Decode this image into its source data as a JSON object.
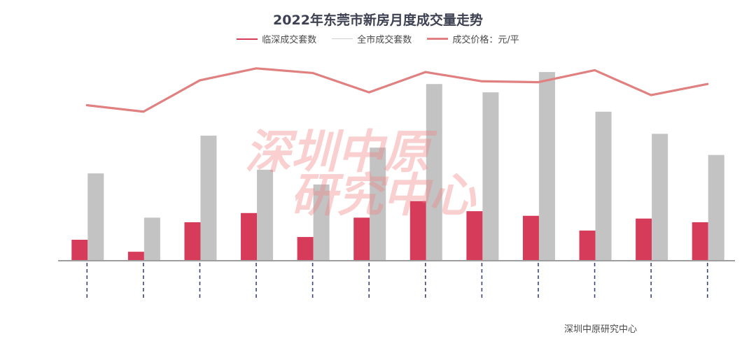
{
  "chart_data": {
    "type": "bar",
    "title": "2022年东莞市新房月度成交量走势",
    "watermark": "深圳中原研究中心",
    "source": "深圳中原研究中心",
    "categories": [
      "",
      "",
      "",
      "",
      "",
      "",
      "",
      "",
      "",
      "",
      "",
      ""
    ],
    "series": [
      {
        "name": "临深成交套数",
        "type": "bar",
        "color": "#d63c5a",
        "values": [
          110,
          45,
          205,
          255,
          125,
          230,
          320,
          265,
          240,
          160,
          225,
          205
        ]
      },
      {
        "name": "全市成交套数",
        "type": "bar",
        "color": "#c3c3c3",
        "values": [
          470,
          230,
          675,
          490,
          410,
          610,
          955,
          910,
          1020,
          805,
          685,
          570
        ]
      },
      {
        "name": "成交价格：元/平",
        "type": "line",
        "color": "#e08080",
        "values": [
          840,
          805,
          975,
          1040,
          1015,
          910,
          1020,
          970,
          965,
          1030,
          895,
          955
        ]
      }
    ],
    "ylim": [
      0,
      1100
    ],
    "grid": false,
    "legend_position": "top"
  }
}
